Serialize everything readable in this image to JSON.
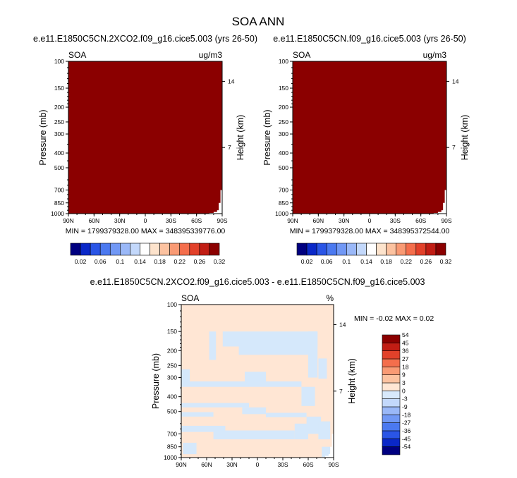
{
  "figure": {
    "title": "SOA ANN",
    "colors": {
      "background": "#ffffff",
      "field_fill": "#8b0000",
      "diff_base": "#ffe6d4",
      "diff_neg": "#d5e8fb"
    }
  },
  "chart_data": [
    {
      "type": "heatmap",
      "title": "e.e11.E1850C5CN.2XCO2.f09_g16.cice5.003 (yrs 26-50)",
      "variable_label": "SOA",
      "units_label": "ug/m3",
      "ylabel": "Pressure (mb)",
      "y2label": "Height (km)",
      "x_ticks": [
        "90N",
        "60N",
        "30N",
        "0",
        "30S",
        "60S",
        "90S"
      ],
      "y_ticks": [
        "100",
        "150",
        "200",
        "250",
        "300",
        "400",
        "500",
        "700",
        "850",
        "1000"
      ],
      "y2_ticks": [
        "14",
        "7"
      ],
      "ylim": [
        100,
        1000
      ],
      "xlim": [
        90,
        -90
      ],
      "min_label": "MIN = 1799379328.00",
      "max_label": "MAX = 348395339776.00",
      "colorbar": {
        "orientation": "horizontal",
        "colors": [
          "#000080",
          "#0a28c8",
          "#2a55e6",
          "#4b79f0",
          "#7198f5",
          "#9ab8f8",
          "#c3d8fb",
          "#ffffff",
          "#fde3cc",
          "#fcc2a0",
          "#f99a74",
          "#f46e4c",
          "#e2412a",
          "#c11d14",
          "#8b0000"
        ],
        "labels": [
          "0.02",
          "0.06",
          "0.1",
          "0.14",
          "0.18",
          "0.22",
          "0.26",
          "0.32"
        ]
      }
    },
    {
      "type": "heatmap",
      "title": "e.e11.E1850C5CN.f09_g16.cice5.003 (yrs 26-50)",
      "variable_label": "SOA",
      "units_label": "ug/m3",
      "ylabel": "Pressure (mb)",
      "y2label": "Height (km)",
      "x_ticks": [
        "90N",
        "60N",
        "30N",
        "0",
        "30S",
        "60S",
        "90S"
      ],
      "y_ticks": [
        "100",
        "150",
        "200",
        "250",
        "300",
        "400",
        "500",
        "700",
        "850",
        "1000"
      ],
      "y2_ticks": [
        "14",
        "7"
      ],
      "ylim": [
        100,
        1000
      ],
      "xlim": [
        90,
        -90
      ],
      "min_label": "MIN = 1799379328.00",
      "max_label": "MAX = 348395372544.00",
      "colorbar": {
        "orientation": "horizontal",
        "colors": [
          "#000080",
          "#0a28c8",
          "#2a55e6",
          "#4b79f0",
          "#7198f5",
          "#9ab8f8",
          "#c3d8fb",
          "#ffffff",
          "#fde3cc",
          "#fcc2a0",
          "#f99a74",
          "#f46e4c",
          "#e2412a",
          "#c11d14",
          "#8b0000"
        ],
        "labels": [
          "0.02",
          "0.06",
          "0.1",
          "0.14",
          "0.18",
          "0.22",
          "0.26",
          "0.32"
        ]
      }
    },
    {
      "type": "heatmap",
      "title": "e.e11.E1850C5CN.2XCO2.f09_g16.cice5.003 - e.e11.E1850C5CN.f09_g16.cice5.003",
      "variable_label": "SOA",
      "units_label": "%",
      "ylabel": "Pressure (mb)",
      "y2label": "Height (km)",
      "x_ticks": [
        "90N",
        "60N",
        "30N",
        "0",
        "30S",
        "60S",
        "90S"
      ],
      "y_ticks": [
        "100",
        "150",
        "200",
        "250",
        "300",
        "400",
        "500",
        "700",
        "850",
        "1000"
      ],
      "y2_ticks": [
        "14",
        "7"
      ],
      "ylim": [
        100,
        1000
      ],
      "xlim": [
        90,
        -90
      ],
      "minmax_label": "MIN =  -0.02   MAX =   0.02",
      "colorbar": {
        "orientation": "vertical",
        "colors": [
          "#000080",
          "#0a28c8",
          "#2a55e6",
          "#4b79f0",
          "#7198f5",
          "#9ab8f8",
          "#c3d8fb",
          "#d8e9fb",
          "#ffe6d4",
          "#fcc2a0",
          "#f99a74",
          "#f46e4c",
          "#e2412a",
          "#c11d14",
          "#8b0000"
        ],
        "labels": [
          "-54",
          "-45",
          "-36",
          "-27",
          "-18",
          "-9",
          "-3",
          "0",
          "3",
          "9",
          "18",
          "27",
          "36",
          "45",
          "54"
        ]
      },
      "negative_regions": [
        {
          "lat": [
            41,
            -71
          ],
          "p": [
            150,
            188
          ]
        },
        {
          "lat": [
            22,
            -63
          ],
          "p": [
            188,
            213
          ]
        },
        {
          "lat": [
            -60,
            -71
          ],
          "p": [
            150,
            300
          ]
        },
        {
          "lat": [
            57,
            49
          ],
          "p": [
            150,
            230
          ]
        },
        {
          "lat": [
            -72,
            -82
          ],
          "p": [
            225,
            305
          ]
        },
        {
          "lat": [
            90,
            80
          ],
          "p": [
            265,
            330
          ]
        },
        {
          "lat": [
            90,
            -52
          ],
          "p": [
            318,
            345
          ]
        },
        {
          "lat": [
            15,
            -10
          ],
          "p": [
            275,
            330
          ]
        },
        {
          "lat": [
            -52,
            -68
          ],
          "p": [
            345,
            460
          ]
        },
        {
          "lat": [
            90,
            10
          ],
          "p": [
            440,
            470
          ]
        },
        {
          "lat": [
            18,
            -10
          ],
          "p": [
            470,
            520
          ]
        },
        {
          "lat": [
            90,
            52
          ],
          "p": [
            505,
            540
          ]
        },
        {
          "lat": [
            -10,
            -58
          ],
          "p": [
            510,
            545
          ]
        },
        {
          "lat": [
            -58,
            -75
          ],
          "p": [
            540,
            700
          ]
        },
        {
          "lat": [
            90,
            38
          ],
          "p": [
            620,
            680
          ]
        },
        {
          "lat": [
            52,
            -44
          ],
          "p": [
            665,
            760
          ]
        },
        {
          "lat": [
            -44,
            -60
          ],
          "p": [
            600,
            760
          ]
        },
        {
          "lat": [
            -72,
            -86
          ],
          "p": [
            580,
            760
          ]
        },
        {
          "lat": [
            88,
            72
          ],
          "p": [
            800,
            950
          ]
        },
        {
          "lat": [
            -76,
            -86
          ],
          "p": [
            850,
            990
          ]
        }
      ]
    }
  ]
}
